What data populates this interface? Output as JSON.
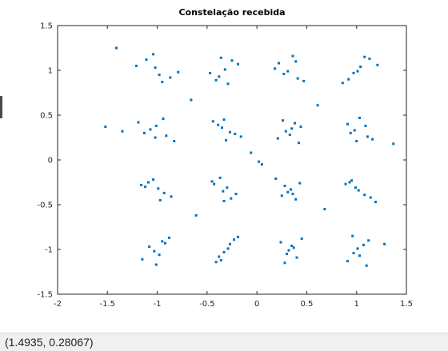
{
  "chart_data": {
    "type": "scatter",
    "title": "Constelação recebida",
    "xlabel": "",
    "ylabel": "",
    "xlim": [
      -2,
      1.5
    ],
    "ylim": [
      -1.5,
      1.5
    ],
    "xticks": [
      "-2",
      "-1.5",
      "-1",
      "-0.5",
      "0",
      "0.5",
      "1",
      "1.5"
    ],
    "yticks": [
      "1.5",
      "1",
      "0.5",
      "0",
      "-0.5",
      "-1",
      "-1.5"
    ],
    "grid": false,
    "legend": "none",
    "marker_color": "#0072bd",
    "constellation": "16-QAM received symbols, points clustered around I,Q in {-1, -0.333, 0.333, 1} with noise spread approx 0.17",
    "cluster_centers_x": [
      -1,
      -0.333,
      0.333,
      1
    ],
    "cluster_centers_y": [
      -1,
      -0.333,
      0.333,
      1
    ],
    "x": [
      -1.02,
      -0.87,
      -1.11,
      -0.95,
      -1.21,
      -0.79,
      -1.04,
      -0.98,
      -0.32,
      -0.41,
      -0.25,
      -0.38,
      -0.19,
      -0.47,
      -0.29,
      -0.36,
      0.31,
      0.22,
      0.41,
      0.36,
      0.18,
      0.47,
      0.27,
      0.39,
      1.04,
      0.92,
      1.13,
      0.97,
      1.21,
      0.86,
      1.08,
      1.01,
      -1.07,
      -0.91,
      -1.19,
      -0.83,
      -1.01,
      -1.13,
      -0.94,
      -1.02,
      -0.35,
      -0.22,
      -0.44,
      -0.31,
      -0.27,
      -0.39,
      -0.16,
      -0.33,
      0.29,
      0.38,
      0.21,
      0.44,
      0.33,
      0.26,
      0.42,
      0.35,
      0.98,
      1.11,
      0.91,
      1.16,
      1.03,
      0.94,
      1.09,
      1.0,
      -0.99,
      -1.09,
      -0.86,
      -1.16,
      -0.93,
      -1.04,
      -0.97,
      -1.12,
      -0.34,
      -0.43,
      -0.26,
      -0.37,
      -0.21,
      -0.3,
      -0.45,
      -0.33,
      0.34,
      0.25,
      0.43,
      0.31,
      0.19,
      0.39,
      0.28,
      0.36,
      1.02,
      0.89,
      1.14,
      0.95,
      1.08,
      0.99,
      1.19,
      0.93,
      -1.03,
      -0.92,
      -1.15,
      -0.88,
      -0.98,
      -1.08,
      -1.01,
      -0.95,
      -0.29,
      -0.38,
      -0.23,
      -0.41,
      -0.33,
      -0.27,
      -0.36,
      -0.19,
      0.32,
      0.24,
      0.4,
      0.35,
      0.28,
      0.45,
      0.3,
      0.37,
      0.97,
      1.07,
      0.91,
      1.12,
      1.03,
      0.96,
      1.1,
      1.01,
      -1.41,
      -1.35,
      1.37,
      1.28,
      -1.52,
      0.05,
      -0.06,
      0.61,
      -0.61,
      0.68,
      -0.66,
      0.02
    ],
    "y": [
      1.03,
      0.92,
      1.12,
      0.87,
      1.05,
      0.98,
      1.18,
      0.95,
      1.01,
      0.89,
      1.11,
      0.93,
      1.07,
      0.97,
      0.85,
      1.14,
      0.99,
      1.08,
      0.91,
      1.16,
      1.02,
      0.88,
      0.96,
      1.1,
      1.04,
      0.9,
      1.13,
      0.97,
      1.06,
      0.86,
      1.15,
      0.99,
      0.34,
      0.27,
      0.42,
      0.21,
      0.38,
      0.3,
      0.46,
      0.25,
      0.36,
      0.29,
      0.43,
      0.22,
      0.31,
      0.39,
      0.26,
      0.45,
      0.32,
      0.41,
      0.24,
      0.37,
      0.28,
      0.44,
      0.19,
      0.35,
      0.33,
      0.26,
      0.4,
      0.23,
      0.47,
      0.3,
      0.38,
      0.21,
      -0.32,
      -0.25,
      -0.41,
      -0.28,
      -0.37,
      -0.22,
      -0.45,
      -0.3,
      -0.35,
      -0.27,
      -0.43,
      -0.2,
      -0.38,
      -0.31,
      -0.24,
      -0.46,
      -0.33,
      -0.4,
      -0.26,
      -0.36,
      -0.21,
      -0.44,
      -0.29,
      -0.38,
      -0.34,
      -0.27,
      -0.42,
      -0.23,
      -0.39,
      -0.31,
      -0.47,
      -0.25,
      -1.02,
      -0.93,
      -1.11,
      -0.87,
      -1.06,
      -0.97,
      -1.17,
      -0.91,
      -0.99,
      -1.08,
      -0.89,
      -1.14,
      -1.03,
      -0.94,
      -1.12,
      -0.86,
      -1.01,
      -0.92,
      -1.09,
      -0.96,
      -1.15,
      -0.88,
      -1.05,
      -0.98,
      -1.04,
      -0.95,
      -1.13,
      -0.9,
      -1.07,
      -0.85,
      -1.18,
      -0.99,
      1.25,
      0.32,
      0.18,
      -0.94,
      0.37,
      -0.05,
      0.08,
      0.61,
      -0.62,
      -0.55,
      0.67,
      -0.02
    ]
  },
  "status": {
    "coords": "(1.4935, 0.28067)"
  }
}
